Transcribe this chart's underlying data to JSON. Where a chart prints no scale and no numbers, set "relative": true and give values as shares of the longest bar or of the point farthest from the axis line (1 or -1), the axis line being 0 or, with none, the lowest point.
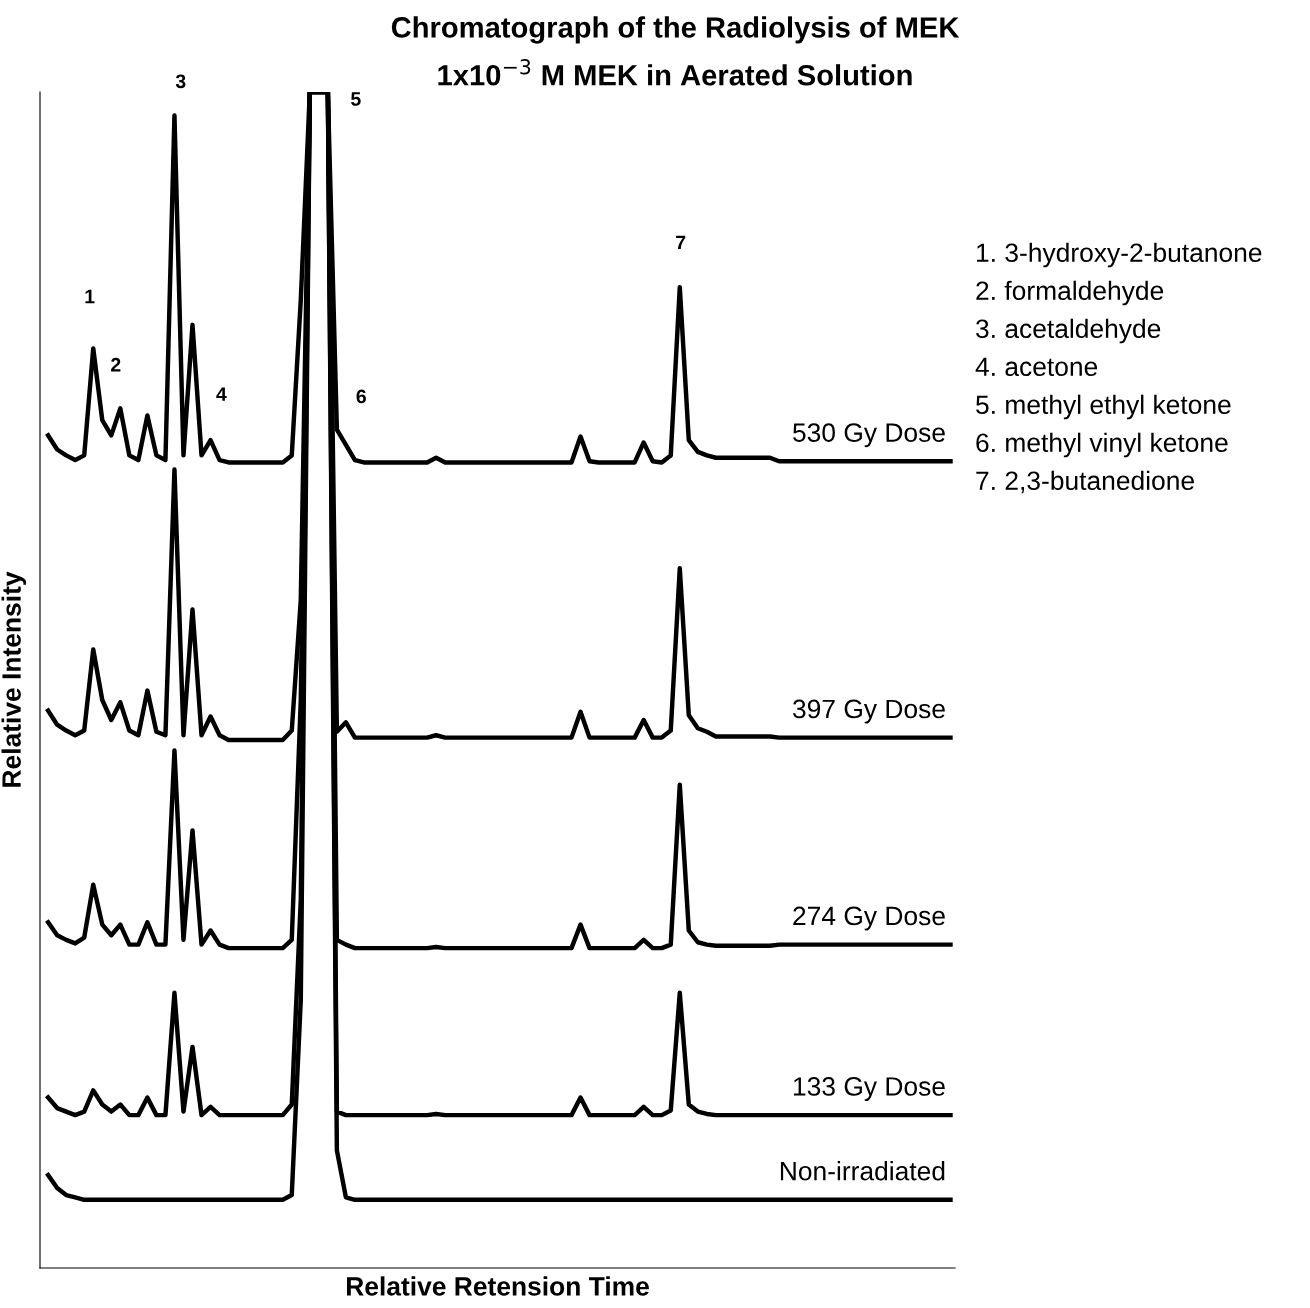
{
  "chart_data": {
    "type": "line",
    "relative": true,
    "title": "Chromatograph of the Radiolysis of MEK",
    "subtitle": "1x10$^{−3}$ M MEK in Aerated Solution",
    "xlabel": "Relative Retension Time",
    "ylabel": "Relative Intensity",
    "categories": [
      null,
      null,
      null,
      null,
      null,
      null,
      null,
      null,
      null,
      null,
      null,
      null,
      null,
      null,
      null,
      null,
      null,
      null,
      null,
      null,
      null,
      null,
      null,
      null,
      null,
      null,
      null,
      null,
      null,
      null,
      null,
      null,
      null,
      null,
      null,
      null,
      null,
      null,
      null,
      null,
      null,
      null,
      null,
      null,
      null,
      null,
      null,
      null,
      null,
      null,
      null,
      null,
      null,
      null,
      null,
      null,
      null,
      null,
      null,
      null,
      null,
      null,
      null,
      null,
      null,
      null,
      null,
      null,
      null,
      null,
      null,
      null,
      null,
      null,
      null,
      null,
      null,
      null,
      null,
      null,
      null,
      null,
      null,
      null,
      null,
      null,
      null,
      null,
      null,
      null,
      null,
      null,
      null,
      null,
      null,
      null,
      null,
      null,
      null,
      null,
      null
    ],
    "series": [
      {
        "name": "530 Gy Dose",
        "color": "#000000",
        "values": [
          0.708,
          0.696,
          0.691,
          0.687,
          0.691,
          0.782,
          0.721,
          0.708,
          0.731,
          0.691,
          0.687,
          0.725,
          0.691,
          0.687,
          0.98,
          0.691,
          0.802,
          0.691,
          0.704,
          0.687,
          0.685,
          0.685,
          0.685,
          0.685,
          0.685,
          0.685,
          0.685,
          0.691,
          0.823,
          1,
          1,
          1,
          0.713,
          0.7,
          0.687,
          0.685,
          0.685,
          0.685,
          0.685,
          0.685,
          0.685,
          0.685,
          0.685,
          0.689,
          0.685,
          0.685,
          0.685,
          0.685,
          0.685,
          0.685,
          0.685,
          0.685,
          0.685,
          0.685,
          0.685,
          0.685,
          0.685,
          0.685,
          0.685,
          0.707,
          0.686,
          0.685,
          0.685,
          0.685,
          0.685,
          0.685,
          0.702,
          0.686,
          0.685,
          0.691,
          0.834,
          0.704,
          0.694,
          0.691,
          0.689,
          0.689,
          0.689,
          0.689,
          0.689,
          0.689,
          0.689,
          0.686,
          0.686,
          0.686,
          0.686,
          0.686,
          0.686,
          0.686,
          0.686,
          0.686,
          0.686,
          0.686,
          0.686,
          0.686,
          0.686,
          0.686,
          0.686,
          0.686,
          0.686,
          0.686,
          0.686
        ]
      },
      {
        "name": "397 Gy Dose",
        "color": "#000000",
        "values": [
          0.474,
          0.462,
          0.457,
          0.453,
          0.457,
          0.526,
          0.483,
          0.466,
          0.481,
          0.457,
          0.453,
          0.491,
          0.456,
          0.453,
          0.679,
          0.453,
          0.56,
          0.453,
          0.469,
          0.453,
          0.449,
          0.449,
          0.449,
          0.449,
          0.449,
          0.449,
          0.449,
          0.457,
          0.568,
          1,
          1,
          1,
          0.456,
          0.464,
          0.451,
          0.451,
          0.451,
          0.451,
          0.451,
          0.451,
          0.451,
          0.451,
          0.451,
          0.453,
          0.451,
          0.451,
          0.451,
          0.451,
          0.451,
          0.451,
          0.451,
          0.451,
          0.451,
          0.451,
          0.451,
          0.451,
          0.451,
          0.451,
          0.451,
          0.473,
          0.451,
          0.451,
          0.451,
          0.451,
          0.451,
          0.451,
          0.466,
          0.451,
          0.451,
          0.457,
          0.595,
          0.47,
          0.459,
          0.456,
          0.452,
          0.452,
          0.452,
          0.452,
          0.452,
          0.452,
          0.452,
          0.451,
          0.451,
          0.451,
          0.451,
          0.451,
          0.451,
          0.451,
          0.451,
          0.451,
          0.451,
          0.451,
          0.451,
          0.451,
          0.451,
          0.451,
          0.451,
          0.451,
          0.451,
          0.451,
          0.451
        ]
      },
      {
        "name": "274 Gy Dose",
        "color": "#000000",
        "values": [
          0.294,
          0.283,
          0.279,
          0.276,
          0.281,
          0.326,
          0.292,
          0.283,
          0.292,
          0.275,
          0.275,
          0.294,
          0.275,
          0.275,
          0.44,
          0.279,
          0.372,
          0.275,
          0.287,
          0.275,
          0.272,
          0.272,
          0.272,
          0.272,
          0.272,
          0.272,
          0.272,
          0.279,
          0.483,
          1,
          1,
          1,
          0.279,
          0.275,
          0.272,
          0.272,
          0.272,
          0.272,
          0.272,
          0.272,
          0.272,
          0.272,
          0.272,
          0.273,
          0.272,
          0.272,
          0.272,
          0.272,
          0.272,
          0.272,
          0.272,
          0.272,
          0.272,
          0.272,
          0.272,
          0.272,
          0.272,
          0.272,
          0.272,
          0.292,
          0.272,
          0.272,
          0.272,
          0.272,
          0.272,
          0.272,
          0.279,
          0.272,
          0.272,
          0.275,
          0.411,
          0.287,
          0.277,
          0.275,
          0.274,
          0.274,
          0.274,
          0.274,
          0.274,
          0.274,
          0.274,
          0.275,
          0.275,
          0.275,
          0.275,
          0.275,
          0.275,
          0.275,
          0.275,
          0.275,
          0.275,
          0.275,
          0.275,
          0.275,
          0.275,
          0.275,
          0.275,
          0.275,
          0.275,
          0.275,
          0.275
        ]
      },
      {
        "name": "133 Gy Dose",
        "color": "#000000",
        "values": [
          0.145,
          0.136,
          0.133,
          0.13,
          0.133,
          0.151,
          0.139,
          0.133,
          0.139,
          0.13,
          0.13,
          0.145,
          0.13,
          0.13,
          0.234,
          0.133,
          0.188,
          0.13,
          0.137,
          0.13,
          0.13,
          0.13,
          0.13,
          0.13,
          0.13,
          0.13,
          0.13,
          0.139,
          0.313,
          1,
          1,
          1,
          0.133,
          0.13,
          0.13,
          0.13,
          0.13,
          0.13,
          0.13,
          0.13,
          0.13,
          0.13,
          0.13,
          0.131,
          0.13,
          0.13,
          0.13,
          0.13,
          0.13,
          0.13,
          0.13,
          0.13,
          0.13,
          0.13,
          0.13,
          0.13,
          0.13,
          0.13,
          0.13,
          0.145,
          0.13,
          0.13,
          0.13,
          0.13,
          0.13,
          0.13,
          0.137,
          0.13,
          0.13,
          0.134,
          0.234,
          0.139,
          0.133,
          0.131,
          0.13,
          0.13,
          0.13,
          0.13,
          0.13,
          0.13,
          0.13,
          0.13,
          0.13,
          0.13,
          0.13,
          0.13,
          0.13,
          0.13,
          0.13,
          0.13,
          0.13,
          0.13,
          0.13,
          0.13,
          0.13,
          0.13,
          0.13,
          0.13,
          0.13,
          0.13,
          0.13
        ]
      },
      {
        "name": "Non-irradiated",
        "color": "#000000",
        "values": [
          0.079,
          0.068,
          0.062,
          0.06,
          0.058,
          0.058,
          0.058,
          0.058,
          0.058,
          0.058,
          0.058,
          0.058,
          0.058,
          0.058,
          0.058,
          0.058,
          0.058,
          0.058,
          0.058,
          0.058,
          0.058,
          0.058,
          0.058,
          0.058,
          0.058,
          0.058,
          0.058,
          0.062,
          0.228,
          1,
          1,
          1,
          0.1,
          0.06,
          0.058,
          0.058,
          0.058,
          0.058,
          0.058,
          0.058,
          0.058,
          0.058,
          0.058,
          0.058,
          0.058,
          0.058,
          0.058,
          0.058,
          0.058,
          0.058,
          0.058,
          0.058,
          0.058,
          0.058,
          0.058,
          0.058,
          0.058,
          0.058,
          0.058,
          0.058,
          0.058,
          0.058,
          0.058,
          0.058,
          0.058,
          0.058,
          0.058,
          0.058,
          0.058,
          0.058,
          0.058,
          0.058,
          0.058,
          0.058,
          0.058,
          0.058,
          0.058,
          0.058,
          0.058,
          0.058,
          0.058,
          0.058,
          0.058,
          0.058,
          0.058,
          0.058,
          0.058,
          0.058,
          0.058,
          0.058,
          0.058,
          0.058,
          0.058,
          0.058,
          0.058,
          0.058,
          0.058,
          0.058,
          0.058,
          0.058,
          0.058
        ]
      }
    ],
    "annotations": [
      "1",
      "2",
      "3",
      "4",
      "5",
      "6",
      "7",
      "1. 3-hydroxy-2-butanone",
      "2. formaldehyde",
      "3. acetaldehyde",
      "4. acetone",
      "5. methyl ethyl ketone",
      "6. methyl vinyl ketone",
      "7. 2,3-butanedione"
    ],
    "marker": "none",
    "line_style": "solid"
  }
}
